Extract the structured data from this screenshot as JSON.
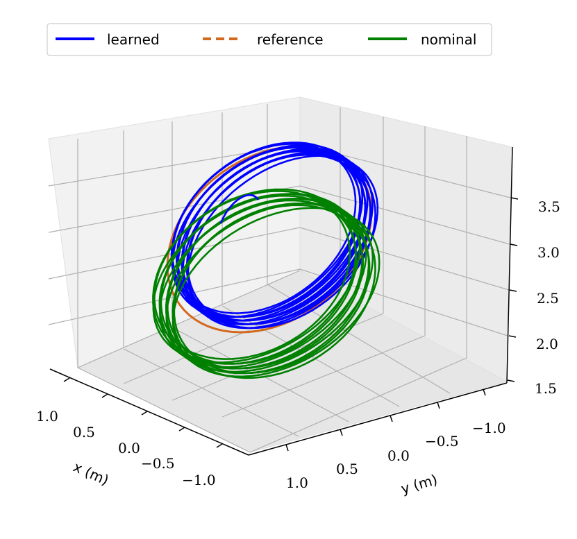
{
  "chart_data": {
    "type": "line",
    "projection": "3d",
    "legend": {
      "placement": "top-center",
      "entries": [
        {
          "label": "learned",
          "color": "#0000ff",
          "style": "solid"
        },
        {
          "label": "reference",
          "color": "#d2691e",
          "style": "dashed"
        },
        {
          "label": "nominal",
          "color": "#008000",
          "style": "solid"
        }
      ]
    },
    "axes": {
      "x": {
        "label": "x (m)",
        "ticks": [
          "1.0",
          "0.5",
          "0.0",
          "−0.5",
          "−1.0"
        ]
      },
      "y": {
        "label": "y (m)",
        "ticks": [
          "1.0",
          "0.5",
          "0.0",
          "−0.5",
          "−1.0"
        ]
      },
      "z": {
        "label": "",
        "ticks": [
          "1.5",
          "2.0",
          "2.5",
          "3.0",
          "3.5"
        ]
      }
    },
    "grid": true,
    "series": [
      {
        "name": "learned",
        "color": "#0000ff",
        "shape": "ellipse-loops",
        "center_z": 3.0,
        "loops": 12
      },
      {
        "name": "reference",
        "color": "#d2691e",
        "shape": "ellipse",
        "center_z": 3.0,
        "loops": 1
      },
      {
        "name": "nominal",
        "color": "#008000",
        "shape": "ellipse-loops",
        "center_z": 2.6,
        "loops": 12
      }
    ]
  }
}
